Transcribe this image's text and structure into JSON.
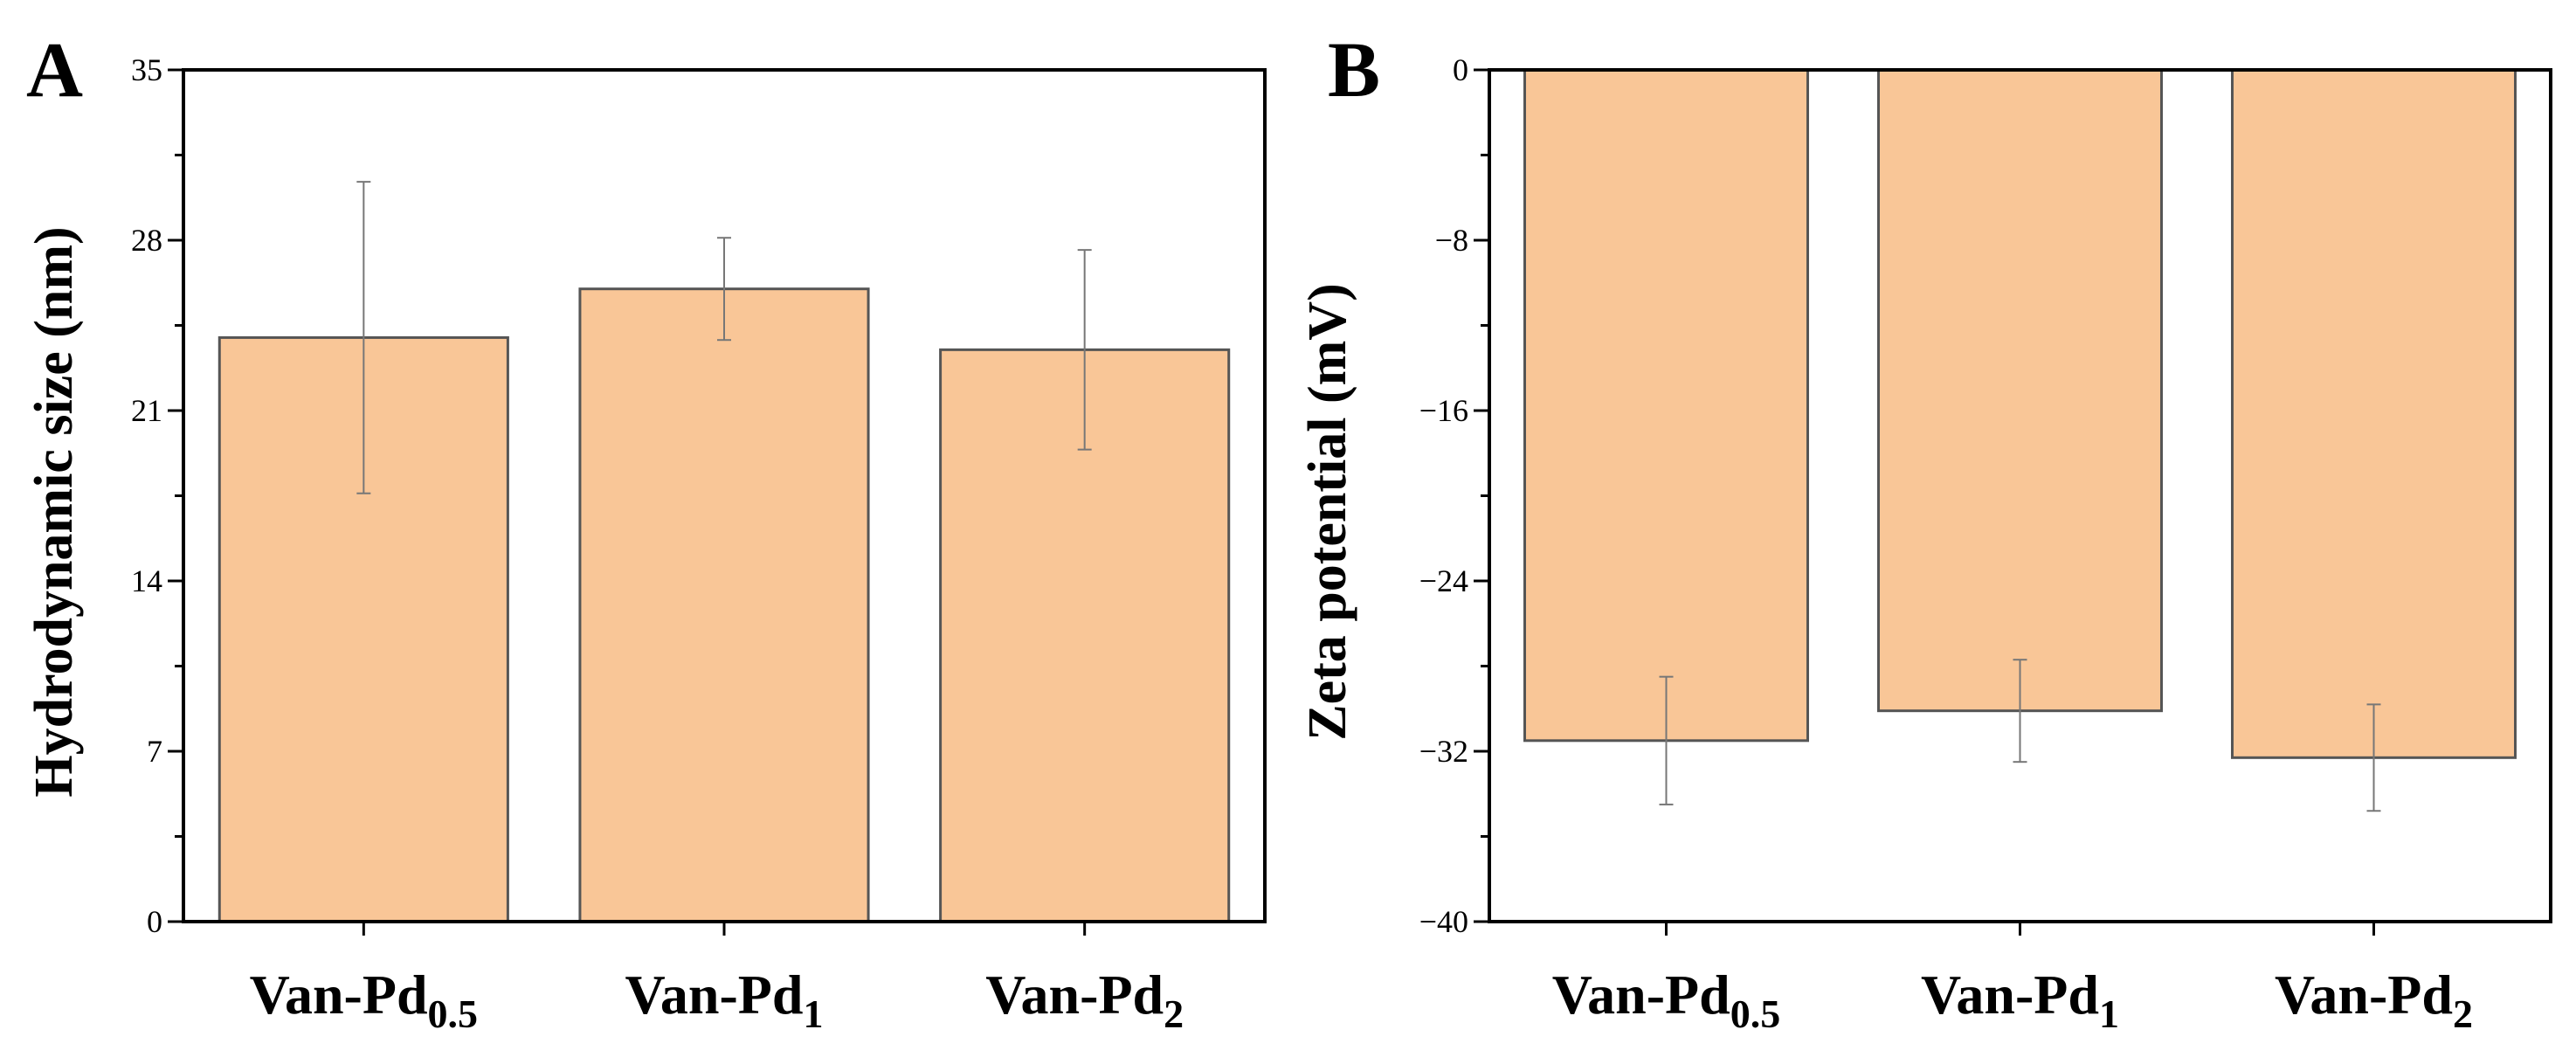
{
  "chart_data": [
    {
      "panel": "A",
      "type": "bar",
      "categories": [
        {
          "base": "Van-Pd",
          "sub": "0.5"
        },
        {
          "base": "Van-Pd",
          "sub": "1"
        },
        {
          "base": "Van-Pd",
          "sub": "2"
        }
      ],
      "values": [
        24.0,
        26.0,
        23.5
      ],
      "errors": [
        6.4,
        2.1,
        4.1
      ],
      "xlabel": "",
      "ylabel": "Hydrodynamic size (nm)",
      "ylim": [
        0,
        35
      ],
      "yticks": [
        "0",
        "7",
        "14",
        "21",
        "28",
        "35"
      ],
      "bar_color": "#F9C697",
      "grid": false
    },
    {
      "panel": "B",
      "type": "bar",
      "categories": [
        {
          "base": "Van-Pd",
          "sub": "0.5"
        },
        {
          "base": "Van-Pd",
          "sub": "1"
        },
        {
          "base": "Van-Pd",
          "sub": "2"
        }
      ],
      "values": [
        -31.5,
        -30.1,
        -32.3
      ],
      "errors": [
        3.0,
        2.4,
        2.5
      ],
      "xlabel": "",
      "ylabel": "Zeta potential (mV)",
      "ylim": [
        -40,
        0
      ],
      "yticks": [
        "0",
        "-8",
        "-16",
        "-24",
        "-32",
        "-40"
      ],
      "bar_color": "#F9C697",
      "grid": false
    }
  ]
}
